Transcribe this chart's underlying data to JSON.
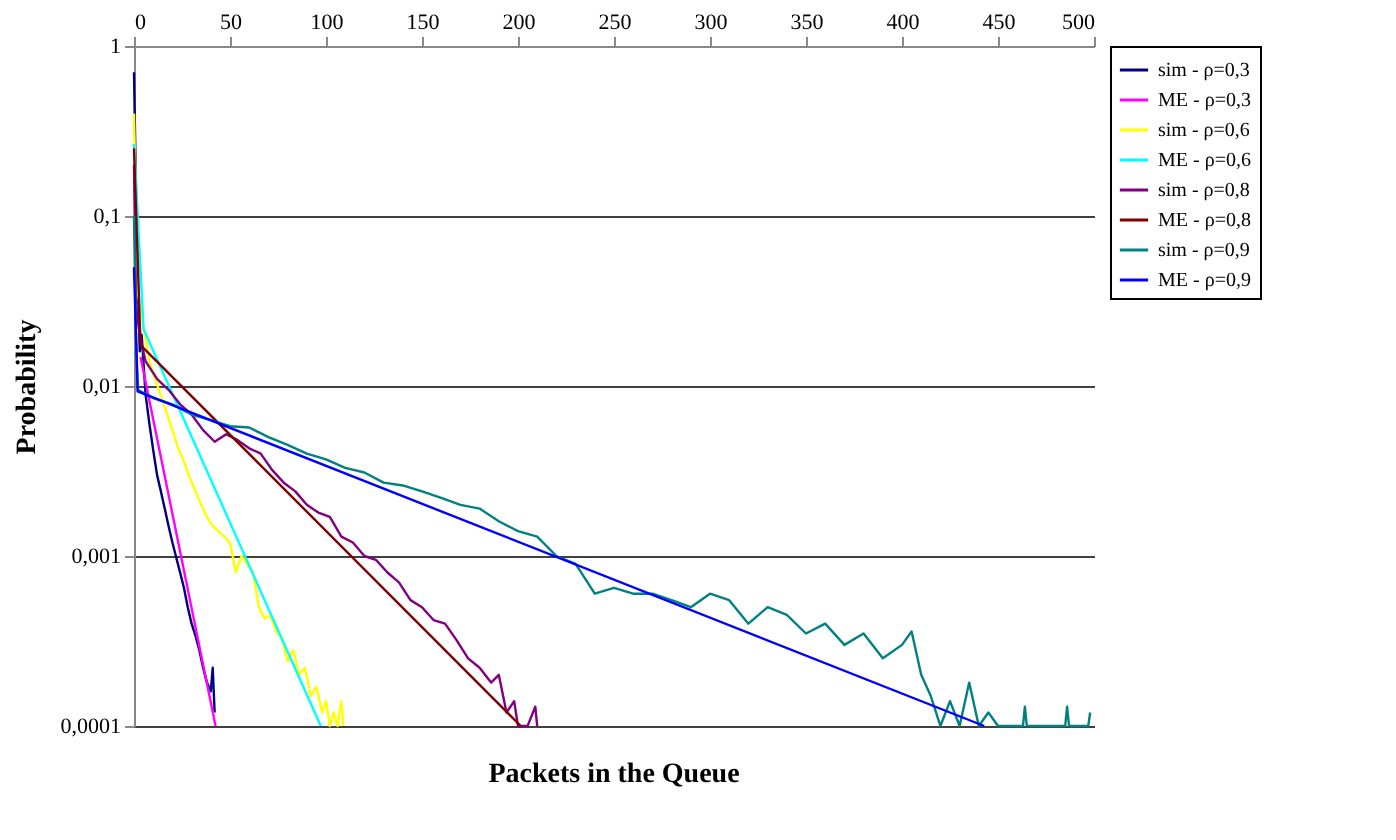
{
  "chart_data": {
    "type": "line",
    "xlabel": "Packets in the Queue",
    "ylabel": "Probability",
    "log": "y",
    "xlim": [
      0,
      500
    ],
    "xticks": [
      0,
      50,
      100,
      150,
      200,
      250,
      300,
      350,
      400,
      450,
      500
    ],
    "ylim": [
      0.0001,
      1
    ],
    "yticks": [
      {
        "value": 0.0001,
        "label": "0,0001"
      },
      {
        "value": 0.001,
        "label": "0,001"
      },
      {
        "value": 0.01,
        "label": "0,01"
      },
      {
        "value": 0.1,
        "label": "0,1"
      },
      {
        "value": 1,
        "label": "1"
      }
    ],
    "grid": "y",
    "legend": "right",
    "marker": "none",
    "line_style": "solid",
    "series": [
      {
        "name": "sim - ρ=0,3",
        "color": "#000080",
        "x": [
          0,
          1,
          2,
          3,
          4,
          6,
          8,
          10,
          12,
          14,
          16,
          18,
          20,
          22,
          24,
          26,
          28,
          30,
          32,
          34,
          36,
          38,
          40,
          41,
          42
        ],
        "values": [
          0.7,
          0.15,
          0.04,
          0.016,
          0.02,
          0.009,
          0.006,
          0.0042,
          0.003,
          0.0024,
          0.0019,
          0.0015,
          0.0012,
          0.00098,
          0.0008,
          0.00065,
          0.0005,
          0.0004,
          0.00034,
          0.00028,
          0.00022,
          0.00018,
          0.00016,
          0.00022,
          0.00012
        ]
      },
      {
        "name": "ME - ρ=0,3",
        "color": "#ff00ff",
        "x": [
          3.4,
          42.5
        ],
        "values": [
          0.0148,
          0.0001
        ]
      },
      {
        "name": "sim - ρ=0,6",
        "color": "#ffff00",
        "x": [
          0,
          1,
          2,
          3,
          5,
          8,
          11,
          14,
          17,
          20,
          23,
          26,
          29,
          32,
          35,
          38,
          41,
          44,
          47,
          50,
          53,
          56,
          59,
          62,
          65,
          68,
          71,
          74,
          77,
          80,
          83,
          86,
          89,
          92,
          95,
          98,
          100,
          102,
          104,
          106,
          108,
          109
        ],
        "values": [
          0.4,
          null,
          0.035,
          0.03,
          0.022,
          0.014,
          0.011,
          0.0088,
          0.007,
          0.0055,
          0.0043,
          0.0036,
          0.0029,
          0.0024,
          0.002,
          0.0017,
          0.0015,
          0.0014,
          0.0013,
          0.0012,
          0.0008,
          0.001,
          0.0009,
          0.0008,
          0.0005,
          0.00043,
          0.00045,
          0.00036,
          0.00033,
          0.00024,
          0.00028,
          0.0002,
          0.00022,
          0.00015,
          0.00017,
          0.00012,
          0.00014,
          0.0001,
          0.00012,
          0.0001,
          0.00014,
          0.0001
        ]
      },
      {
        "name": "ME - ρ=0,6",
        "color": "#00ffff",
        "x": [
          0,
          5,
          97.3
        ],
        "values": [
          0.265,
          0.0216,
          0.0001
        ]
      },
      {
        "name": "sim - ρ=0,8",
        "color": "#800080",
        "x": [
          0,
          1,
          3,
          6,
          12,
          18,
          24,
          30,
          36,
          42,
          48,
          54,
          60,
          66,
          72,
          78,
          84,
          90,
          96,
          102,
          108,
          114,
          120,
          126,
          132,
          138,
          144,
          150,
          156,
          162,
          168,
          174,
          180,
          186,
          190,
          194,
          198,
          200,
          205,
          209,
          210
        ],
        "values": [
          0.2,
          0.03,
          0.02,
          0.014,
          0.011,
          0.0095,
          0.0078,
          0.0068,
          0.0055,
          0.0047,
          0.0052,
          0.0048,
          0.0043,
          0.004,
          0.0032,
          0.0027,
          0.0024,
          0.002,
          0.0018,
          0.0017,
          0.0013,
          0.0012,
          0.001,
          0.00095,
          0.0008,
          0.0007,
          0.00055,
          0.0005,
          0.00042,
          0.0004,
          0.00032,
          0.00025,
          0.00022,
          0.00018,
          0.0002,
          0.00012,
          0.00014,
          0.0001,
          0.0001,
          0.00013,
          0.0001
        ]
      },
      {
        "name": "ME - ρ=0,8",
        "color": "#800000",
        "x": [
          0,
          3.4,
          201.4
        ],
        "values": [
          0.25,
          0.0174,
          0.0001
        ]
      },
      {
        "name": "sim - ρ=0,9",
        "color": "#008080",
        "x": [
          0,
          1,
          2,
          10,
          20,
          30,
          40,
          50,
          60,
          70,
          80,
          90,
          100,
          110,
          120,
          130,
          140,
          150,
          160,
          170,
          180,
          190,
          200,
          210,
          220,
          230,
          240,
          250,
          260,
          270,
          280,
          290,
          300,
          310,
          320,
          330,
          340,
          350,
          360,
          370,
          380,
          390,
          400,
          405,
          410,
          415,
          420,
          425,
          430,
          435,
          440,
          445,
          450,
          463,
          464,
          465,
          485,
          486,
          487,
          497,
          498
        ],
        "values": [
          0.1,
          0.02,
          0.0095,
          0.0085,
          0.0078,
          0.0068,
          0.0063,
          0.0058,
          0.0057,
          0.005,
          0.0045,
          0.004,
          0.0037,
          0.0033,
          0.0031,
          0.0027,
          0.0026,
          0.0024,
          0.0022,
          0.002,
          0.0019,
          0.0016,
          0.0014,
          0.0013,
          0.001,
          0.0009,
          0.0006,
          0.00065,
          0.0006,
          0.0006,
          0.00055,
          0.0005,
          0.0006,
          0.00055,
          0.0004,
          0.0005,
          0.00045,
          0.00035,
          0.0004,
          0.0003,
          0.00035,
          0.00025,
          0.0003,
          0.00036,
          0.0002,
          0.00015,
          0.0001,
          0.00014,
          0.0001,
          0.00018,
          0.0001,
          0.00012,
          0.0001,
          0.0001,
          0.00013,
          0.0001,
          0.0001,
          0.00013,
          0.0001,
          0.0001,
          0.00012
        ]
      },
      {
        "name": "ME - ρ=0,9",
        "color": "#0000ff",
        "x": [
          0,
          1.9,
          442.8
        ],
        "values": [
          0.05,
          0.0093,
          0.0001
        ]
      }
    ]
  }
}
